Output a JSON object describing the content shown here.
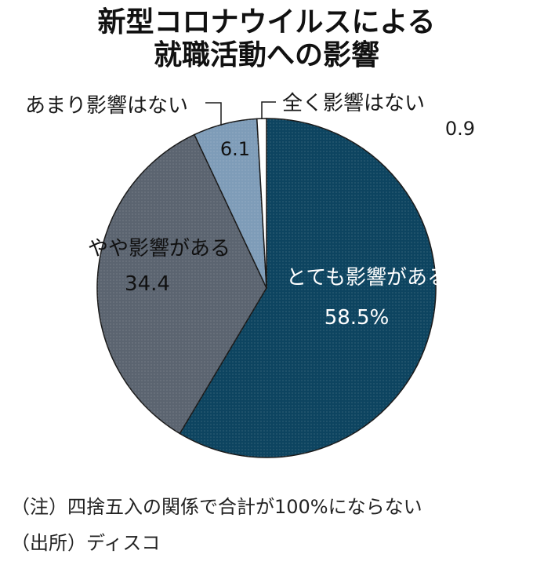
{
  "chart_data": {
    "type": "pie",
    "title_lines": [
      "新型コロナウイルスによる",
      "就職活動への影響"
    ],
    "slices": [
      {
        "label": "とても影響がある",
        "value": 58.5,
        "value_text": "58.5%",
        "color": "#0d4460"
      },
      {
        "label": "やや影響がある",
        "value": 34.4,
        "value_text": "34.4",
        "color": "#5b6470"
      },
      {
        "label": "あまり影響はない",
        "value": 6.1,
        "value_text": "6.1",
        "color": "#7e9cb8"
      },
      {
        "label": "全く影響はない",
        "value": 0.9,
        "value_text": "0.9",
        "color": "#ffffff"
      }
    ]
  },
  "notes": [
    "（注）四捨五入の関係で合計が100%にならない",
    "（出所）ディスコ"
  ]
}
